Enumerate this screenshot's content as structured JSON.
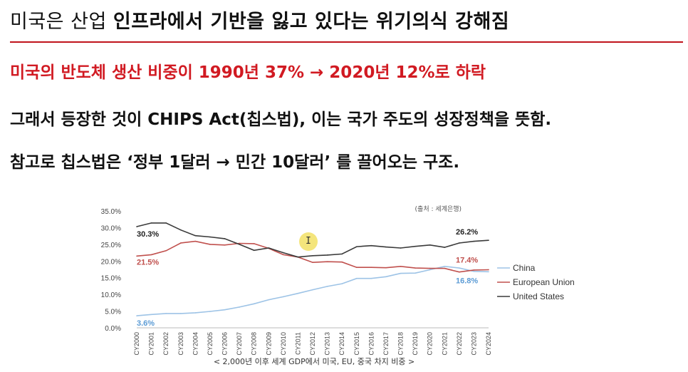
{
  "heading": {
    "plain": "미국은 산업 ",
    "bold": "인프라에서 기반을 잃고 있다는 위기의식 강해짐"
  },
  "lines": {
    "red": "미국의 반도체 생산 비중이 1990년 37% → 2020년 12%로 하락",
    "second": "그래서 등장한 것이 CHIPS Act(칩스법), 이는 국가 주도의 성장정책을 뜻함.",
    "third": "참고로 칩스법은  ‘정부 1달러 → 민간 10달러’ 를 끌어오는 구조."
  },
  "cursor": {
    "glyph": "I"
  },
  "chart_data": {
    "type": "line",
    "title": "",
    "source_note": "(출처 : 세계은행)",
    "caption": "< 2,000년 이후 세계 GDP에서 미국, EU, 중국 차지 비중 >",
    "x": [
      "CY2000",
      "CY2001",
      "CY2002",
      "CY2003",
      "CY2004",
      "CY2005",
      "CY2006",
      "CY2007",
      "CY2008",
      "CY2009",
      "CY2010",
      "CY2011",
      "CY2012",
      "CY2013",
      "CY2014",
      "CY2015",
      "CY2016",
      "CY2017",
      "CY2018",
      "CY2019",
      "CY2020",
      "CY2021",
      "CY2022",
      "CY2023",
      "CY2024"
    ],
    "y_ticks": [
      "0.0%",
      "5.0%",
      "10.0%",
      "15.0%",
      "20.0%",
      "25.0%",
      "30.0%",
      "35.0%"
    ],
    "ylim": [
      0,
      35
    ],
    "legend_position": "right",
    "series": [
      {
        "name": "China",
        "color": "#9dc3e6",
        "values": [
          3.6,
          4.0,
          4.3,
          4.3,
          4.5,
          4.9,
          5.4,
          6.2,
          7.2,
          8.4,
          9.3,
          10.3,
          11.4,
          12.4,
          13.2,
          14.8,
          14.8,
          15.3,
          16.3,
          16.4,
          17.4,
          18.4,
          17.9,
          16.9,
          16.8
        ],
        "start_label": "3.6%",
        "end_label": "16.8%",
        "label_color": "#5b9bd5"
      },
      {
        "name": "European Union",
        "color": "#c0504d",
        "values": [
          21.5,
          21.9,
          23.1,
          25.4,
          25.9,
          25.0,
          24.8,
          25.3,
          25.2,
          23.8,
          21.9,
          21.2,
          19.6,
          19.8,
          19.7,
          18.1,
          18.1,
          18.0,
          18.4,
          17.9,
          17.8,
          17.8,
          16.7,
          17.3,
          17.4
        ],
        "start_label": "21.5%",
        "end_label": "17.4%",
        "label_color": "#c0504d"
      },
      {
        "name": "United States",
        "color": "#3a3a3a",
        "values": [
          30.3,
          31.4,
          31.4,
          29.3,
          27.6,
          27.2,
          26.7,
          25.0,
          23.2,
          23.9,
          22.5,
          21.2,
          21.6,
          21.8,
          22.1,
          24.3,
          24.6,
          24.2,
          23.9,
          24.4,
          24.8,
          24.1,
          25.4,
          25.9,
          26.2
        ],
        "start_label": "30.3%",
        "end_label": "26.2%",
        "label_color": "#222222"
      }
    ]
  }
}
